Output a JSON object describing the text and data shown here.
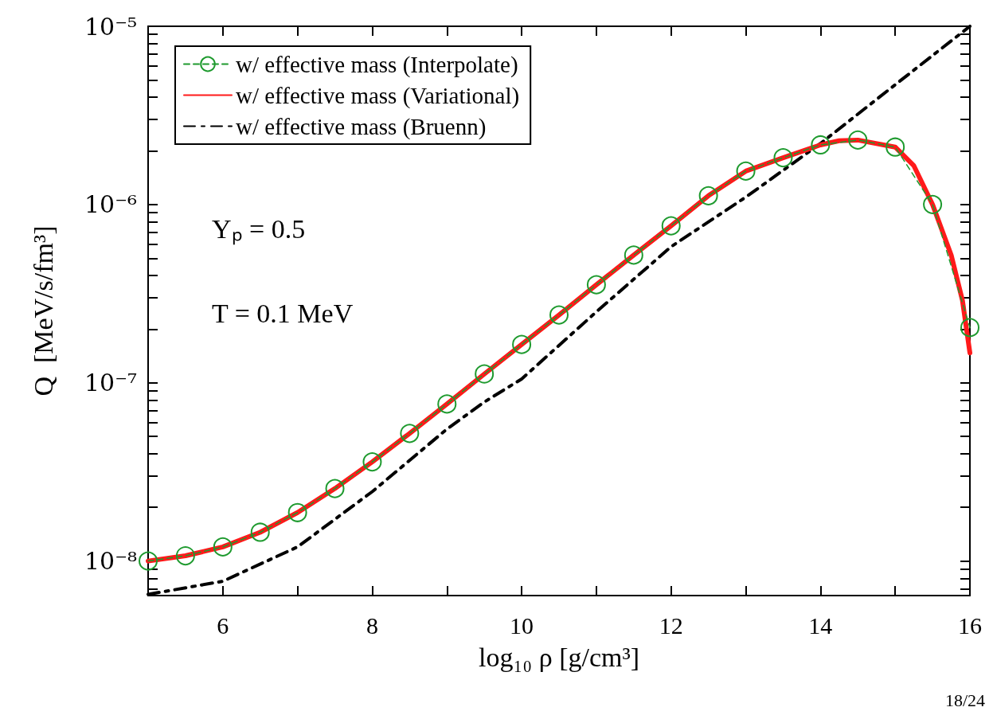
{
  "chart_data": {
    "type": "line",
    "xlabel": "log₁₀ ρ [g/cm³]",
    "ylabel": "Q  [MeV/s/fm³]",
    "log": "y",
    "xlim": [
      5,
      16
    ],
    "ylim": [
      6.4e-09,
      1e-05
    ],
    "xticks": [
      {
        "value": 5,
        "label": null
      },
      6,
      {
        "value": 7,
        "label": null
      },
      8,
      {
        "value": 9,
        "label": null
      },
      10,
      {
        "value": 11,
        "label": null
      },
      12,
      {
        "value": 13,
        "label": null
      },
      14,
      {
        "value": 15,
        "label": null
      },
      16
    ],
    "yticks": [
      {
        "value": 7e-09,
        "label": null
      },
      {
        "value": 8e-09,
        "label": null
      },
      {
        "value": 9e-09,
        "label": null
      },
      {
        "value": 1e-08,
        "label": "10⁻⁸"
      },
      {
        "value": 2e-08,
        "label": null
      },
      {
        "value": 3e-08,
        "label": null
      },
      {
        "value": 4e-08,
        "label": null
      },
      {
        "value": 5e-08,
        "label": null
      },
      {
        "value": 6e-08,
        "label": null
      },
      {
        "value": 7e-08,
        "label": null
      },
      {
        "value": 8e-08,
        "label": null
      },
      {
        "value": 9e-08,
        "label": null
      },
      {
        "value": 1e-07,
        "label": "10⁻⁷"
      },
      {
        "value": 2e-07,
        "label": null
      },
      {
        "value": 3e-07,
        "label": null
      },
      {
        "value": 4e-07,
        "label": null
      },
      {
        "value": 5e-07,
        "label": null
      },
      {
        "value": 6e-07,
        "label": null
      },
      {
        "value": 7e-07,
        "label": null
      },
      {
        "value": 8e-07,
        "label": null
      },
      {
        "value": 9e-07,
        "label": null
      },
      {
        "value": 1e-06,
        "label": "10⁻⁶"
      },
      {
        "value": 2e-06,
        "label": null
      },
      {
        "value": 3e-06,
        "label": null
      },
      {
        "value": 4e-06,
        "label": null
      },
      {
        "value": 5e-06,
        "label": null
      },
      {
        "value": 6e-06,
        "label": null
      },
      {
        "value": 7e-06,
        "label": null
      },
      {
        "value": 8e-06,
        "label": null
      },
      {
        "value": 9e-06,
        "label": null
      },
      {
        "value": 1e-05,
        "label": "10⁻⁵"
      }
    ],
    "grid": false,
    "legend": "top left",
    "annotations": [
      "Yₚ = 0.5",
      "T = 0.1 MeV",
      "18/24"
    ],
    "series": [
      {
        "name": "w/ effective mass (Interpolate)",
        "color": "#1e9a2e",
        "marker": "circle",
        "line_style": "dashed",
        "x": [
          5,
          5.5,
          6,
          6.5,
          7,
          7.5,
          8,
          8.5,
          9,
          9.5,
          10,
          10.5,
          11,
          11.5,
          12,
          12.5,
          13,
          13.5,
          14,
          14.5,
          15,
          15.5,
          16
        ],
        "values": [
          1e-08,
          1.07e-08,
          1.2e-08,
          1.45e-08,
          1.87e-08,
          2.55e-08,
          3.6e-08,
          5.2e-08,
          7.6e-08,
          1.12e-07,
          1.64e-07,
          2.4e-07,
          3.55e-07,
          5.2e-07,
          7.6e-07,
          1.12e-06,
          1.54e-06,
          1.83e-06,
          2.16e-06,
          2.3e-06,
          2.1e-06,
          1e-06,
          2.04e-07
        ]
      },
      {
        "name": "w/ effective mass (Variational)",
        "color": "#ff1a1a",
        "marker": "none",
        "line_style": "solid",
        "x": [
          5,
          5.5,
          6,
          6.5,
          7,
          7.5,
          8,
          8.5,
          9,
          9.5,
          10,
          10.5,
          11,
          11.5,
          12,
          12.5,
          13,
          13.5,
          14,
          14.25,
          14.5,
          15,
          15.25,
          15.5,
          15.75,
          15.9,
          16
        ],
        "values": [
          1e-08,
          1.07e-08,
          1.2e-08,
          1.45e-08,
          1.87e-08,
          2.55e-08,
          3.6e-08,
          5.2e-08,
          7.6e-08,
          1.12e-07,
          1.64e-07,
          2.4e-07,
          3.55e-07,
          5.2e-07,
          7.6e-07,
          1.12e-06,
          1.54e-06,
          1.83e-06,
          2.16e-06,
          2.28e-06,
          2.3e-06,
          2.1e-06,
          1.65e-06,
          1e-06,
          5.2e-07,
          2.9e-07,
          1.47e-07
        ]
      },
      {
        "name": "w/ effective mass (Bruenn)",
        "color": "#000000",
        "marker": "none",
        "line_style": "dashdot",
        "x": [
          5,
          6,
          7,
          8,
          9,
          9.5,
          10,
          11,
          12,
          13,
          14,
          15,
          16
        ],
        "values": [
          6.5e-09,
          7.7e-09,
          1.2e-08,
          2.45e-08,
          5.5e-08,
          7.8e-08,
          1.05e-07,
          2.5e-07,
          5.8e-07,
          1.1e-06,
          2.2e-06,
          4.7e-06,
          1e-05
        ]
      }
    ]
  }
}
